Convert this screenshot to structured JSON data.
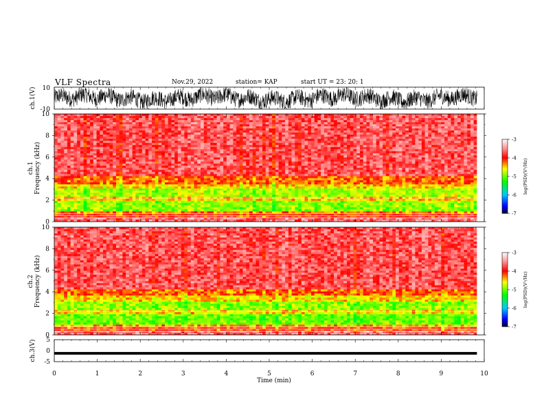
{
  "header": {
    "title": "VLF Spectra",
    "date": "Nov.29, 2022",
    "station": "station= KAP",
    "start": "start  UT =   23: 20: 1"
  },
  "chart_data": [
    {
      "type": "line",
      "panel": "waveform-ch1",
      "ylabel": "ch.1(V)",
      "ylim": [
        -10,
        10
      ],
      "yticks": [
        "10",
        "-10"
      ],
      "xlim": [
        0,
        10
      ],
      "x_extent_end": 9.83,
      "description_values": "dense oscillating signal roughly between -8 and 9 V"
    },
    {
      "type": "heatmap",
      "panel": "spectrogram-ch1",
      "ylabel": "ch.1\nFrequency  (kHz)",
      "ylabel_line1": "ch.1",
      "ylabel_line2": "Frequency  (kHz)",
      "ylim": [
        0,
        10
      ],
      "yticks": [
        "0",
        "2",
        "4",
        "6",
        "8",
        "10"
      ],
      "xlim": [
        0,
        10
      ],
      "x_extent_end": 9.83,
      "bands": [
        {
          "from": 0.0,
          "to": 0.35,
          "level": -3.6
        },
        {
          "from": 0.35,
          "to": 0.8,
          "level": -4.0
        },
        {
          "from": 0.8,
          "to": 1.0,
          "level": -4.3
        },
        {
          "from": 1.0,
          "to": 1.9,
          "level": -4.9
        },
        {
          "from": 1.9,
          "to": 2.15,
          "level": -4.5
        },
        {
          "from": 2.15,
          "to": 2.4,
          "level": -4.4
        },
        {
          "from": 2.4,
          "to": 3.0,
          "level": -4.8
        },
        {
          "from": 3.0,
          "to": 3.5,
          "level": -4.5
        },
        {
          "from": 3.5,
          "to": 4.2,
          "level": -4.2
        },
        {
          "from": 4.2,
          "to": 10.0,
          "level": -3.7
        }
      ]
    },
    {
      "type": "heatmap",
      "panel": "spectrogram-ch2",
      "ylabel_line1": "ch.2",
      "ylabel_line2": "Frequency  (kHz)",
      "ylim": [
        0,
        10
      ],
      "yticks": [
        "0",
        "2",
        "4",
        "6",
        "8",
        "10"
      ],
      "xlim": [
        0,
        10
      ],
      "x_extent_end": 9.83,
      "bands": [
        {
          "from": 0.0,
          "to": 0.35,
          "level": -3.6
        },
        {
          "from": 0.35,
          "to": 0.8,
          "level": -4.1
        },
        {
          "from": 0.8,
          "to": 1.0,
          "level": -4.4
        },
        {
          "from": 1.0,
          "to": 1.9,
          "level": -5.0
        },
        {
          "from": 1.9,
          "to": 2.3,
          "level": -4.5
        },
        {
          "from": 2.3,
          "to": 3.0,
          "level": -4.9
        },
        {
          "from": 3.0,
          "to": 3.6,
          "level": -4.5
        },
        {
          "from": 3.6,
          "to": 4.2,
          "level": -4.2
        },
        {
          "from": 4.2,
          "to": 10.0,
          "level": -3.7
        }
      ]
    },
    {
      "type": "line",
      "panel": "waveform-ch3",
      "ylabel": "ch.3(V)",
      "ylim": [
        -5,
        5
      ],
      "yticks": [
        "5",
        "0",
        "-5"
      ],
      "xlim": [
        0,
        10
      ],
      "x_extent_end": 9.83,
      "description_values": "thick flat band near -1 V"
    }
  ],
  "x_axis": {
    "label": "Time  (min)",
    "ticks": [
      "0",
      "1",
      "2",
      "3",
      "4",
      "5",
      "6",
      "7",
      "8",
      "9",
      "10"
    ]
  },
  "colorbar": {
    "label": "log(PSD)(V²/Hz)",
    "range": [
      -7,
      -3
    ],
    "ticks": [
      "-3",
      "-4",
      "-5",
      "-6",
      "-7"
    ],
    "stops": [
      {
        "v": -7.0,
        "color": "#000030"
      },
      {
        "v": -6.6,
        "color": "#0000ff"
      },
      {
        "v": -6.0,
        "color": "#00c8ff"
      },
      {
        "v": -5.3,
        "color": "#00ff00"
      },
      {
        "v": -4.6,
        "color": "#ffff00"
      },
      {
        "v": -4.0,
        "color": "#ff0000"
      },
      {
        "v": -3.5,
        "color": "#ff9090"
      },
      {
        "v": -3.0,
        "color": "#ffffff"
      }
    ]
  }
}
